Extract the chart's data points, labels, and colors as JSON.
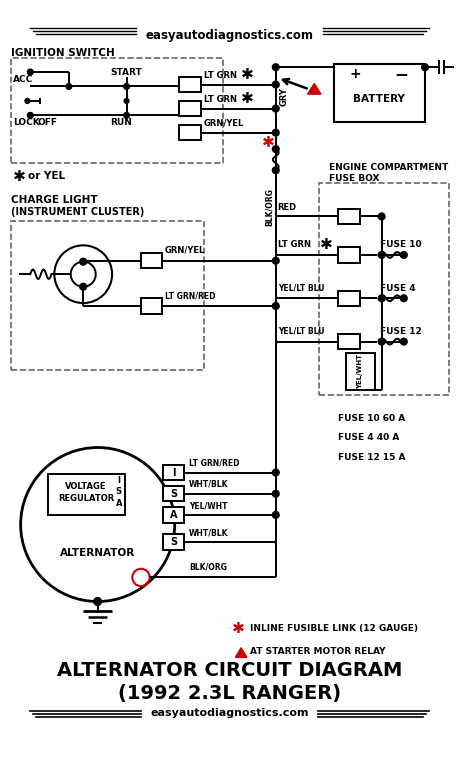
{
  "title_top": "easyautodiagnostics.com",
  "title_bottom1": "ALTERNATOR CIRCUIT DIAGRAM",
  "title_bottom2": "(1992 2.3L RANGER)",
  "title_bottom3": "easyautodiagnostics.com",
  "bg_color": "#ffffff",
  "line_color": "#000000",
  "red_color": "#cc0000",
  "figsize": [
    4.74,
    7.66
  ],
  "dpi": 100
}
